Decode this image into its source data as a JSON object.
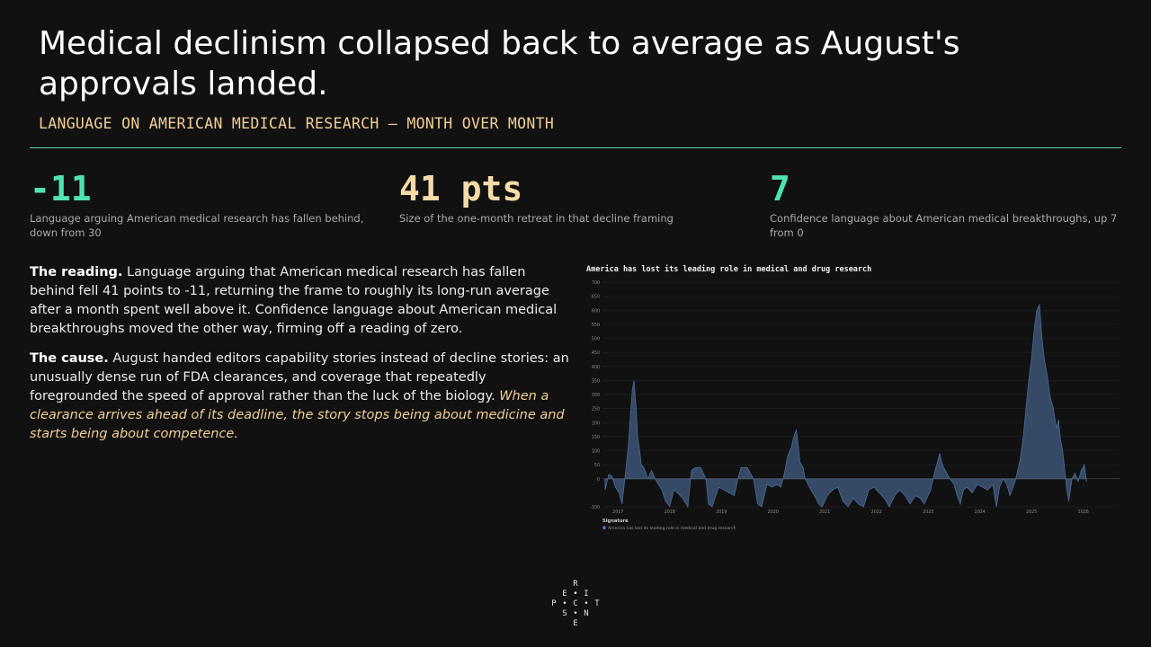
{
  "header": {
    "title": "Medical declinism collapsed back to average as August's approvals landed.",
    "subtitle": "LANGUAGE ON AMERICAN MEDICAL RESEARCH — MONTH OVER MONTH"
  },
  "stats": [
    {
      "value": "-11",
      "caption": "Language arguing American medical research has fallen behind, down from 30",
      "color": "#4fe3b0"
    },
    {
      "value": "41 pts",
      "caption": "Size of the one-month retreat in that decline framing",
      "color": "#f6dba8"
    },
    {
      "value": "7",
      "caption": "Confidence language about American medical breakthroughs, up 7 from 0",
      "color": "#4fe3b0"
    }
  ],
  "body": {
    "p1_lead": "The reading.",
    "p1_text": " Language arguing that American medical research has fallen behind fell 41 points to -11, returning the frame to roughly its long-run average after a month spent well above it. Confidence language about American medical breakthroughs moved the other way, firming off a reading of zero.",
    "p2_lead": "The cause.",
    "p2_text": " August handed editors capability stories instead of decline stories: an unusually dense run of FDA clearances, and coverage that repeatedly foregrounded the speed of approval rather than the luck of the biology. ",
    "p2_italic": "When a clearance arrives ahead of its deadline, the story stops being about medicine and starts being about competence."
  },
  "logo": {
    "letters": [
      "R",
      "E",
      "•",
      "I",
      "P",
      "•",
      "C",
      "•",
      "T",
      "S",
      "•",
      "N",
      "E"
    ]
  },
  "chart_data": {
    "type": "area",
    "title": "America has lost its leading role in medical and drug research",
    "legend_title": "Signature",
    "legend_position": "bottom-left",
    "series": [
      {
        "name": "America has lost its leading role in medical and drug research",
        "color": "#3d5578",
        "points": [
          [
            2016.75,
            -40
          ],
          [
            2016.82,
            15
          ],
          [
            2016.88,
            10
          ],
          [
            2016.95,
            -30
          ],
          [
            2017.02,
            -50
          ],
          [
            2017.08,
            -90
          ],
          [
            2017.15,
            30
          ],
          [
            2017.2,
            120
          ],
          [
            2017.25,
            250
          ],
          [
            2017.28,
            320
          ],
          [
            2017.31,
            350
          ],
          [
            2017.35,
            250
          ],
          [
            2017.38,
            150
          ],
          [
            2017.42,
            100
          ],
          [
            2017.45,
            50
          ],
          [
            2017.5,
            40
          ],
          [
            2017.58,
            0
          ],
          [
            2017.65,
            30
          ],
          [
            2017.72,
            0
          ],
          [
            2017.78,
            -20
          ],
          [
            2017.85,
            -40
          ],
          [
            2017.92,
            -80
          ],
          [
            2018.0,
            -100
          ],
          [
            2018.08,
            -40
          ],
          [
            2018.15,
            -50
          ],
          [
            2018.25,
            -70
          ],
          [
            2018.35,
            -100
          ],
          [
            2018.42,
            30
          ],
          [
            2018.5,
            40
          ],
          [
            2018.6,
            40
          ],
          [
            2018.7,
            0
          ],
          [
            2018.75,
            -90
          ],
          [
            2018.82,
            -100
          ],
          [
            2018.95,
            -30
          ],
          [
            2019.05,
            -40
          ],
          [
            2019.15,
            -50
          ],
          [
            2019.25,
            -60
          ],
          [
            2019.32,
            0
          ],
          [
            2019.38,
            40
          ],
          [
            2019.5,
            40
          ],
          [
            2019.62,
            0
          ],
          [
            2019.7,
            -90
          ],
          [
            2019.78,
            -100
          ],
          [
            2019.88,
            -20
          ],
          [
            2019.98,
            -30
          ],
          [
            2020.08,
            -20
          ],
          [
            2020.15,
            -30
          ],
          [
            2020.22,
            20
          ],
          [
            2020.28,
            80
          ],
          [
            2020.35,
            110
          ],
          [
            2020.4,
            150
          ],
          [
            2020.45,
            175
          ],
          [
            2020.48,
            130
          ],
          [
            2020.52,
            60
          ],
          [
            2020.58,
            40
          ],
          [
            2020.62,
            0
          ],
          [
            2020.7,
            -30
          ],
          [
            2020.8,
            -60
          ],
          [
            2020.88,
            -90
          ],
          [
            2020.95,
            -100
          ],
          [
            2021.05,
            -60
          ],
          [
            2021.15,
            -40
          ],
          [
            2021.25,
            -30
          ],
          [
            2021.35,
            -80
          ],
          [
            2021.45,
            -100
          ],
          [
            2021.55,
            -70
          ],
          [
            2021.65,
            -90
          ],
          [
            2021.75,
            -100
          ],
          [
            2021.85,
            -40
          ],
          [
            2021.95,
            -30
          ],
          [
            2022.05,
            -50
          ],
          [
            2022.15,
            -70
          ],
          [
            2022.25,
            -100
          ],
          [
            2022.35,
            -60
          ],
          [
            2022.45,
            -40
          ],
          [
            2022.55,
            -60
          ],
          [
            2022.65,
            -90
          ],
          [
            2022.75,
            -60
          ],
          [
            2022.85,
            -70
          ],
          [
            2022.92,
            -90
          ],
          [
            2023.0,
            -60
          ],
          [
            2023.05,
            -40
          ],
          [
            2023.12,
            20
          ],
          [
            2023.18,
            60
          ],
          [
            2023.22,
            90
          ],
          [
            2023.26,
            60
          ],
          [
            2023.3,
            40
          ],
          [
            2023.36,
            20
          ],
          [
            2023.42,
            0
          ],
          [
            2023.5,
            -20
          ],
          [
            2023.56,
            -60
          ],
          [
            2023.62,
            -90
          ],
          [
            2023.68,
            -40
          ],
          [
            2023.75,
            -30
          ],
          [
            2023.85,
            -50
          ],
          [
            2023.95,
            -20
          ],
          [
            2024.05,
            -30
          ],
          [
            2024.15,
            -40
          ],
          [
            2024.25,
            -20
          ],
          [
            2024.32,
            -100
          ],
          [
            2024.38,
            -30
          ],
          [
            2024.45,
            0
          ],
          [
            2024.52,
            -20
          ],
          [
            2024.58,
            -60
          ],
          [
            2024.62,
            -40
          ],
          [
            2024.68,
            -10
          ],
          [
            2024.72,
            20
          ],
          [
            2024.78,
            70
          ],
          [
            2024.84,
            150
          ],
          [
            2024.9,
            270
          ],
          [
            2024.95,
            360
          ],
          [
            2025.0,
            430
          ],
          [
            2025.05,
            530
          ],
          [
            2025.1,
            600
          ],
          [
            2025.15,
            620
          ],
          [
            2025.2,
            500
          ],
          [
            2025.25,
            420
          ],
          [
            2025.3,
            370
          ],
          [
            2025.36,
            290
          ],
          [
            2025.42,
            250
          ],
          [
            2025.48,
            180
          ],
          [
            2025.52,
            210
          ],
          [
            2025.56,
            140
          ],
          [
            2025.6,
            100
          ],
          [
            2025.64,
            30
          ],
          [
            2025.68,
            -40
          ],
          [
            2025.72,
            -80
          ],
          [
            2025.78,
            0
          ],
          [
            2025.84,
            20
          ],
          [
            2025.9,
            -10
          ],
          [
            2025.96,
            30
          ],
          [
            2026.02,
            50
          ],
          [
            2026.06,
            -10
          ]
        ]
      }
    ],
    "x_ticks": [
      "2017",
      "2018",
      "2019",
      "2020",
      "2021",
      "2022",
      "2023",
      "2024",
      "2025",
      "2026"
    ],
    "x_tick_values": [
      2017,
      2018,
      2019,
      2020,
      2021,
      2022,
      2023,
      2024,
      2025,
      2026
    ],
    "xlim": [
      2016.7,
      2026.7
    ],
    "ylim": [
      -100,
      700
    ],
    "y_ticks": [
      -100,
      0,
      50,
      100,
      150,
      200,
      250,
      300,
      350,
      400,
      450,
      500,
      550,
      600,
      650,
      700
    ],
    "grid": true
  }
}
